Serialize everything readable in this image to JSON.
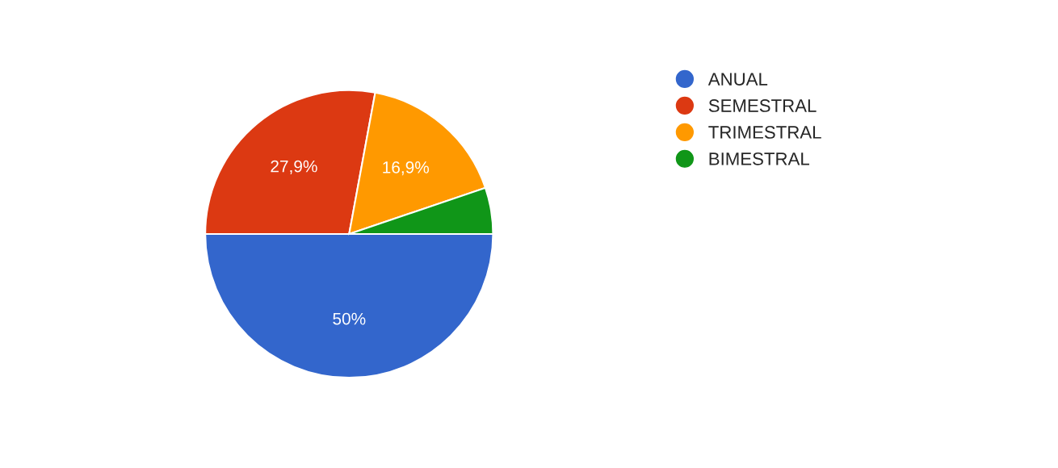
{
  "chart_data": {
    "type": "pie",
    "categories": [
      "ANUAL",
      "SEMESTRAL",
      "TRIMESTRAL",
      "BIMESTRAL"
    ],
    "values": [
      50,
      27.9,
      16.9,
      5.2
    ],
    "colors": [
      "#3366cc",
      "#dc3912",
      "#ff9900",
      "#109618"
    ],
    "value_labels": [
      "50%",
      "27,9%",
      "16,9%",
      null
    ],
    "legend": "top right"
  }
}
